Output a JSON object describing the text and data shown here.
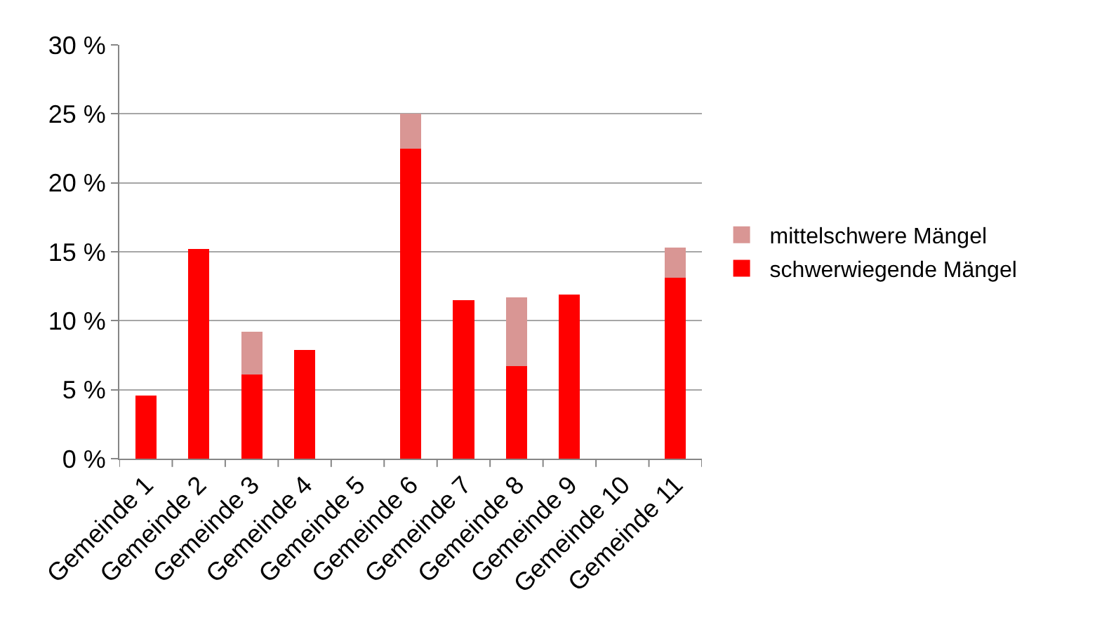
{
  "chart_data": {
    "type": "bar",
    "stacked": true,
    "categories": [
      "Gemeinde 1",
      "Gemeinde 2",
      "Gemeinde 3",
      "Gemeinde 4",
      "Gemeinde 5",
      "Gemeinde 6",
      "Gemeinde 7",
      "Gemeinde 8",
      "Gemeinde 9",
      "Gemeinde 10",
      "Gemeinde 11"
    ],
    "series": [
      {
        "name": "schwerwiegende Mängel",
        "color": "#ff0000",
        "values": [
          4.6,
          15.2,
          6.1,
          7.9,
          0,
          22.5,
          11.5,
          6.7,
          11.9,
          0,
          13.1
        ]
      },
      {
        "name": "mittelschwere Mängel",
        "color": "#d99694",
        "values": [
          0,
          0,
          3.1,
          0,
          0,
          2.5,
          0,
          5.0,
          0,
          0,
          2.2
        ]
      }
    ],
    "ylim": [
      0,
      30
    ],
    "yticks": [
      {
        "value": 0,
        "label": "0 %"
      },
      {
        "value": 5,
        "label": "5 %"
      },
      {
        "value": 10,
        "label": "10 %"
      },
      {
        "value": 15,
        "label": "15 %"
      },
      {
        "value": 20,
        "label": "20 %"
      },
      {
        "value": 25,
        "label": "25 %"
      },
      {
        "value": 30,
        "label": "30 %"
      }
    ],
    "grid": "y",
    "legend": "right"
  }
}
